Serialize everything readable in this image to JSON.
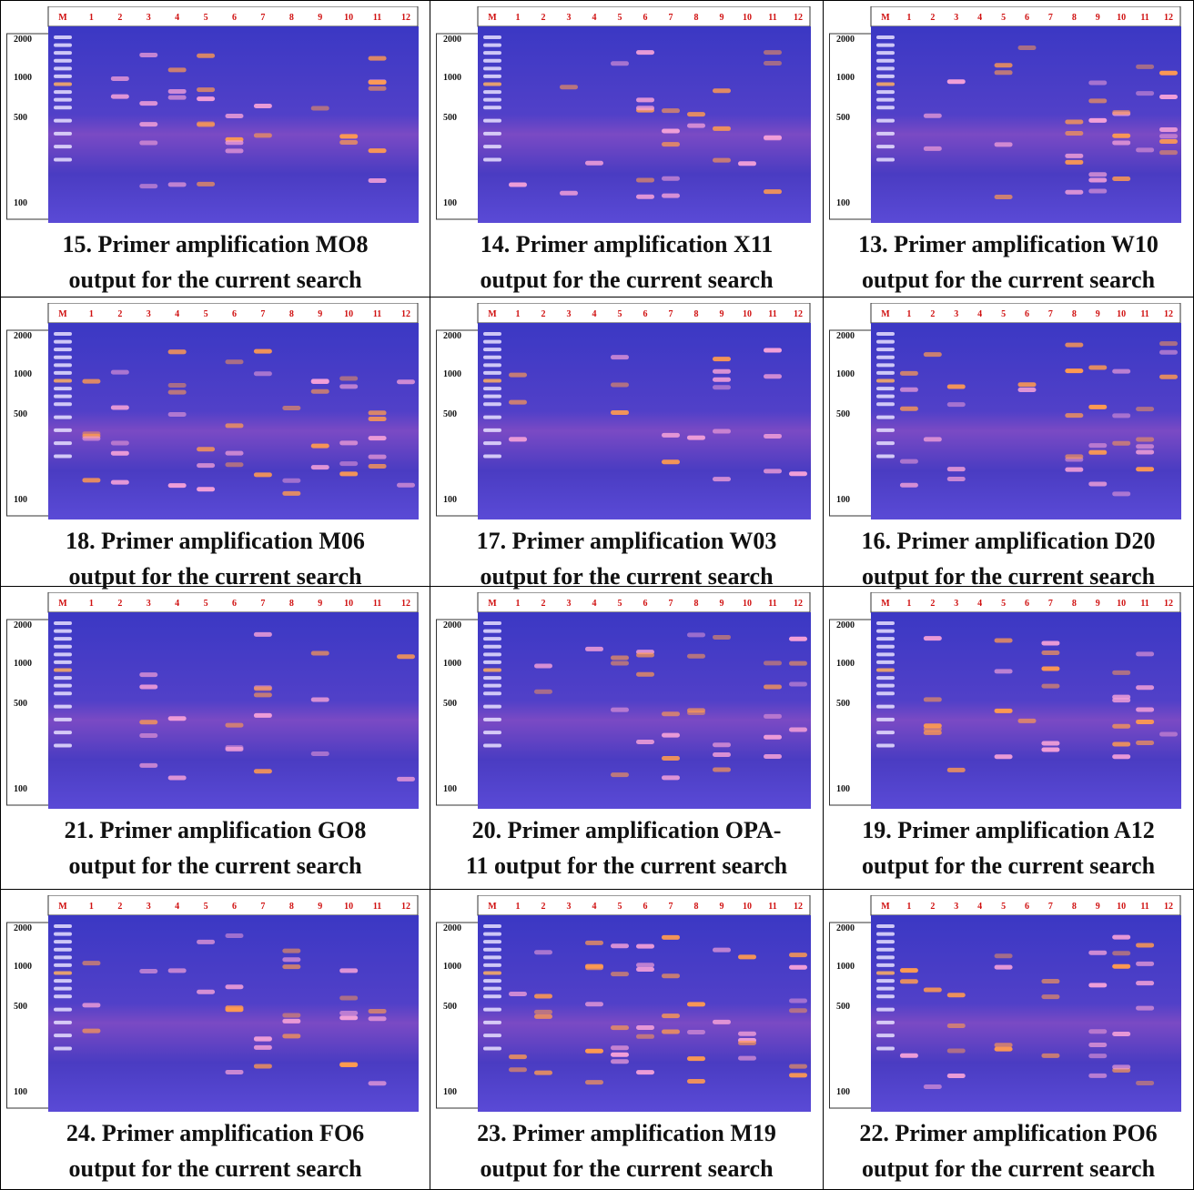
{
  "lane_labels": [
    "M",
    "1",
    "2",
    "3",
    "4",
    "5",
    "6",
    "7",
    "8",
    "9",
    "10",
    "11",
    "12"
  ],
  "ladder_labels": [
    "2000",
    "1000",
    "500",
    "100"
  ],
  "panels": [
    {
      "caption": [
        "15. Primer amplification MO8",
        "output for the current search"
      ]
    },
    {
      "caption": [
        "14. Primer amplification X11",
        "output for the current search"
      ]
    },
    {
      "caption": [
        "13. Primer amplification W10",
        "output for the current search"
      ]
    },
    {
      "caption": [
        "18. Primer amplification M06",
        "output for the current search"
      ]
    },
    {
      "caption": [
        "17. Primer amplification W03",
        "output for the current search"
      ]
    },
    {
      "caption": [
        "16. Primer amplification D20",
        "output for the current search"
      ]
    },
    {
      "caption": [
        "21. Primer amplification GO8",
        "output for the current search"
      ]
    },
    {
      "caption": [
        "20. Primer amplification OPA-",
        "11 output for the current search"
      ]
    },
    {
      "caption": [
        "19. Primer amplification A12",
        "output for the current search"
      ]
    },
    {
      "caption": [
        "24. Primer amplification FO6",
        "output for the current search"
      ]
    },
    {
      "caption": [
        "23. Primer amplification M19",
        "output for the current search"
      ]
    },
    {
      "caption": [
        "22. Primer amplification PO6",
        "output for the current search"
      ]
    }
  ]
}
